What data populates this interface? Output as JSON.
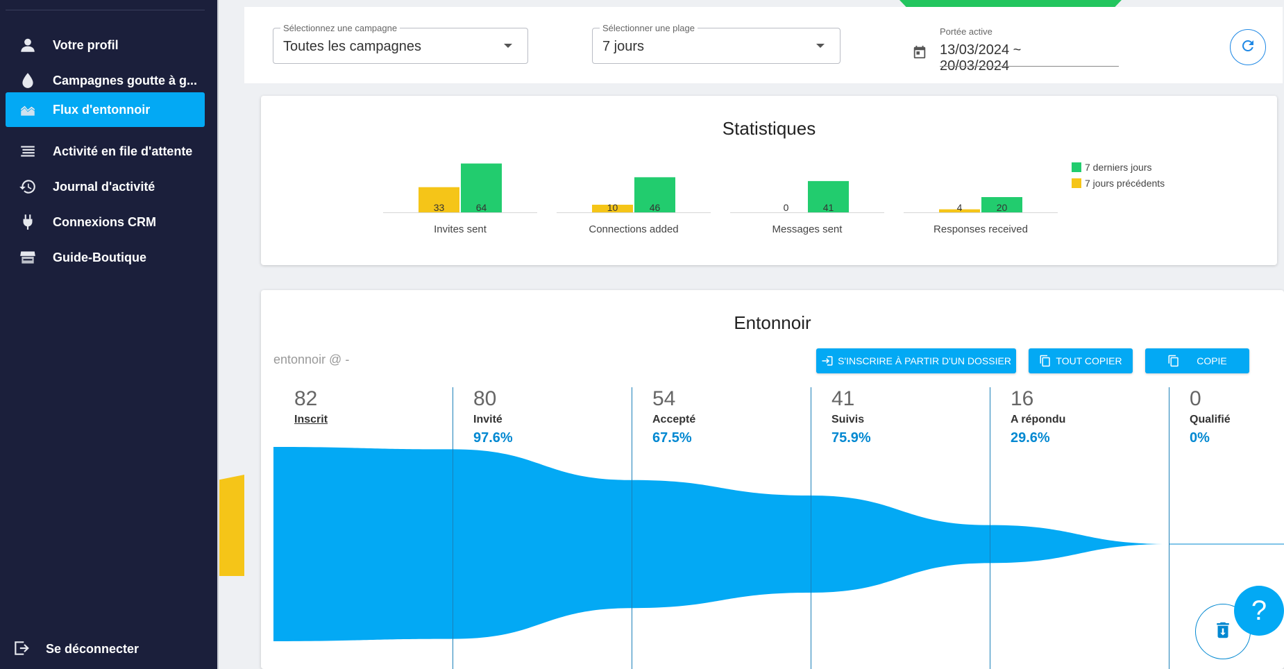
{
  "sidebar": {
    "items": [
      {
        "label": "Votre profil",
        "icon": "person-icon",
        "active": false
      },
      {
        "label": "Campagnes goutte à g...",
        "icon": "drop-icon",
        "active": false
      },
      {
        "label": "Flux d'entonnoir",
        "icon": "area-chart-icon",
        "active": true
      },
      {
        "label": "Activité en file d'attente",
        "icon": "queue-list-icon",
        "active": false
      },
      {
        "label": "Journal d'activité",
        "icon": "history-icon",
        "active": false
      },
      {
        "label": "Connexions CRM",
        "icon": "plug-icon",
        "active": false
      },
      {
        "label": "Guide-Boutique",
        "icon": "store-icon",
        "active": false
      }
    ],
    "logout_label": "Se déconnecter"
  },
  "filters": {
    "campaign": {
      "legend": "Sélectionnez une campagne",
      "value": "Toutes les campagnes"
    },
    "range": {
      "legend": "Sélectionner une plage",
      "value": "7 jours"
    },
    "date": {
      "legend": "Portée active",
      "value": "13/03/2024 ~ 20/03/2024"
    }
  },
  "stats": {
    "title": "Statistiques",
    "chart_data": {
      "type": "bar",
      "categories": [
        "Invites sent",
        "Connections added",
        "Messages sent",
        "Responses received"
      ],
      "series": [
        {
          "name": "7 jours précédents",
          "values": [
            33,
            10,
            0,
            4
          ],
          "color": "#f5c518"
        },
        {
          "name": "7 derniers jours",
          "values": [
            64,
            46,
            41,
            20
          ],
          "color": "#22cc6e"
        }
      ],
      "legend": [
        "7 derniers jours",
        "7 jours précédents"
      ],
      "legend_position": "top-right",
      "grid": false
    }
  },
  "funnel": {
    "title": "Entonnoir",
    "subtitle": "entonnoir @ -",
    "buttons": {
      "enroll": "S'INSCRIRE À PARTIR D'UN DOSSIER",
      "copy_all": "TOUT COPIER",
      "copy": "COPIE"
    },
    "stages": [
      {
        "count": "82",
        "name": "Inscrit",
        "pct": ""
      },
      {
        "count": "80",
        "name": "Invité",
        "pct": "97.6%"
      },
      {
        "count": "54",
        "name": "Accepté",
        "pct": "67.5%"
      },
      {
        "count": "41",
        "name": "Suivis",
        "pct": "75.9%"
      },
      {
        "count": "16",
        "name": "A répondu",
        "pct": "29.6%"
      },
      {
        "count": "0",
        "name": "Qualifié",
        "pct": "0%"
      }
    ],
    "chart_data": {
      "type": "area",
      "categories": [
        "Inscrit",
        "Invité",
        "Accepté",
        "Suivis",
        "A répondu",
        "Qualifié"
      ],
      "values": [
        82,
        80,
        54,
        41,
        16,
        0
      ],
      "color": "#03a9f4"
    }
  },
  "fab": {
    "help_label": "?",
    "trash_icon": "trash-icon"
  },
  "colors": {
    "sidebar_bg": "#1b1f3b",
    "accent": "#03a9f4",
    "green": "#22cc6e",
    "yellow": "#f5c518"
  }
}
